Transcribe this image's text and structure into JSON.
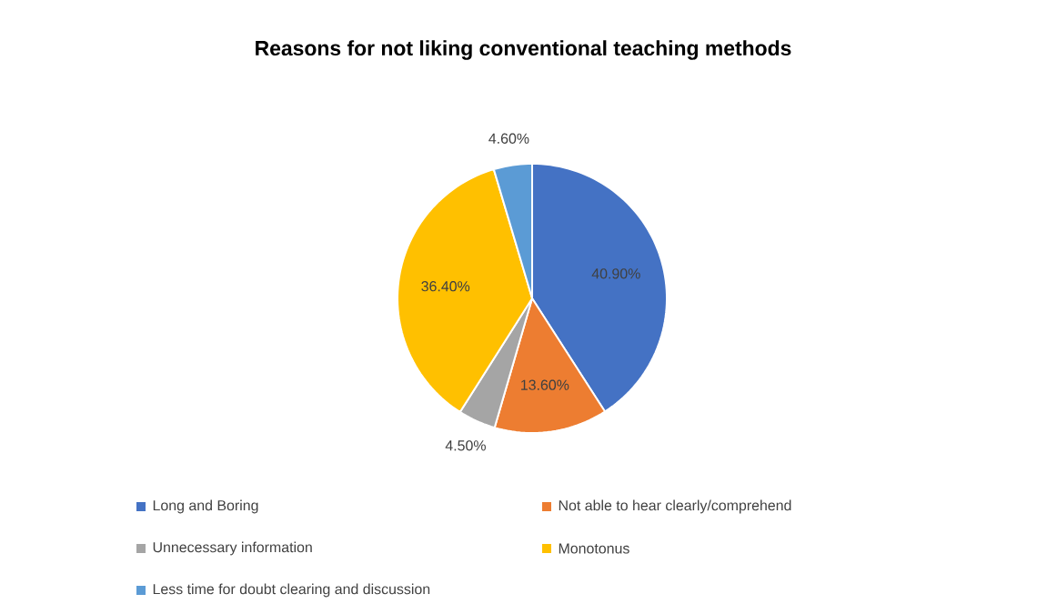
{
  "chart_data": {
    "type": "pie",
    "title": "Reasons for not liking conventional teaching methods",
    "categories": [
      "Long and Boring",
      "Not able to hear clearly/comprehend",
      "Unnecessary information",
      "Monotonus",
      "Less time for doubt clearing and discussion"
    ],
    "values": [
      40.9,
      13.6,
      4.5,
      36.4,
      4.6
    ],
    "colors": [
      "#4472c4",
      "#ed7d31",
      "#a5a5a5",
      "#ffc000",
      "#5b9bd5"
    ],
    "value_labels": [
      "40.90%",
      "13.60%",
      "4.50%",
      "36.40%",
      "4.60%"
    ],
    "legend": "bottom"
  }
}
